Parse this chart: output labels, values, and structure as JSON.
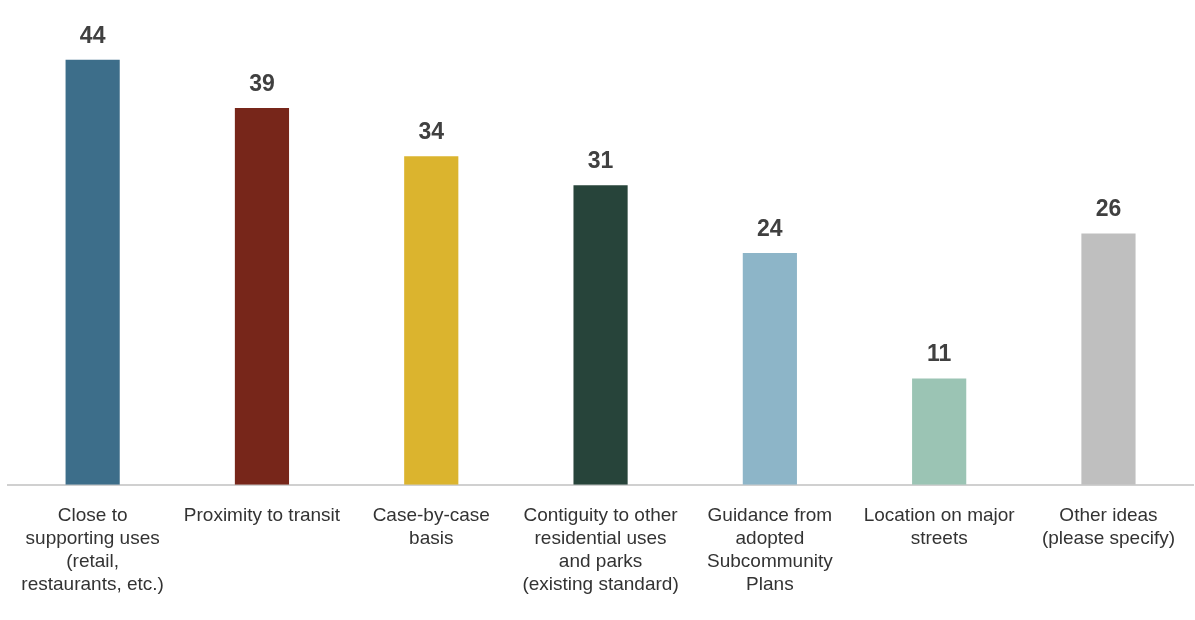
{
  "chart_data": {
    "type": "bar",
    "categories": [
      "Close to supporting uses (retail, restaurants, etc.)",
      "Proximity to transit",
      "Case-by-case basis",
      "Contiguity to other residential uses and parks (existing standard)",
      "Guidance from adopted Subcommunity Plans",
      "Location on major streets",
      "Other ideas (please specify)"
    ],
    "values": [
      44,
      39,
      34,
      31,
      24,
      11,
      26
    ],
    "colors": [
      "#3d6e8a",
      "#77261a",
      "#dbb42e",
      "#27443a",
      "#8db5c8",
      "#9bc4b4",
      "#bfbfbf"
    ],
    "data_labels": true,
    "legend": false,
    "grid": false
  }
}
